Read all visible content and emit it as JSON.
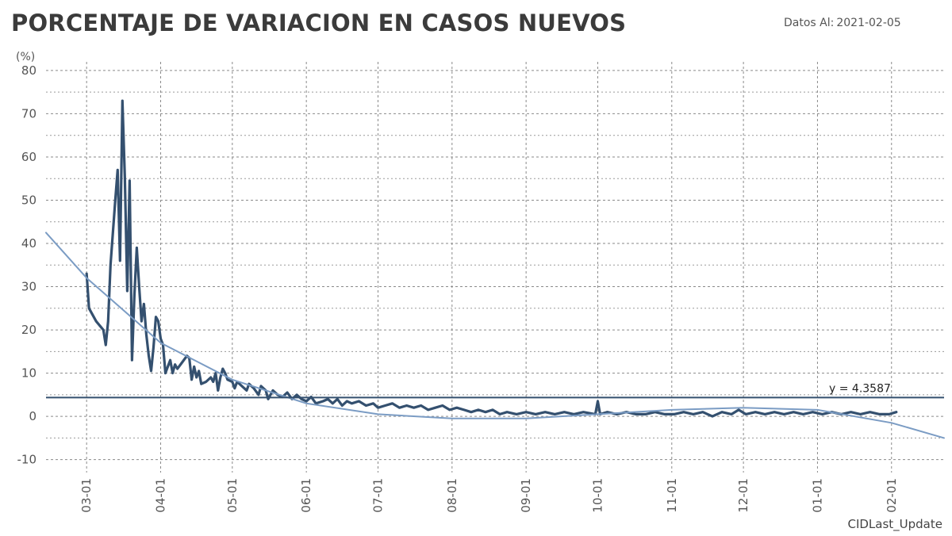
{
  "header": {
    "title": "PORCENTAJE DE VARIACION EN CASOS NUEVOS",
    "data_as_of_label": "Datos Al:",
    "data_as_of_date": "2021-02-05"
  },
  "footer": {
    "text": "CIDLast_Update"
  },
  "chart_data": {
    "type": "line",
    "title": "PORCENTAJE DE VARIACION EN CASOS NUEVOS",
    "ylabel": "(%)",
    "xlabel": "",
    "x_range": [
      "2020-02-13",
      "2021-02-23"
    ],
    "ylim": [
      -13,
      82
    ],
    "y_ticks": [
      -10,
      0,
      10,
      20,
      30,
      40,
      50,
      60,
      70,
      80
    ],
    "x_ticks": [
      {
        "date": "2020-03-01",
        "label": "03-01"
      },
      {
        "date": "2020-04-01",
        "label": "04-01"
      },
      {
        "date": "2020-05-01",
        "label": "05-01"
      },
      {
        "date": "2020-06-01",
        "label": "06-01"
      },
      {
        "date": "2020-07-01",
        "label": "07-01"
      },
      {
        "date": "2020-08-01",
        "label": "08-01"
      },
      {
        "date": "2020-09-01",
        "label": "09-01"
      },
      {
        "date": "2020-10-01",
        "label": "10-01"
      },
      {
        "date": "2020-11-01",
        "label": "11-01"
      },
      {
        "date": "2020-12-01",
        "label": "12-01"
      },
      {
        "date": "2021-01-01",
        "label": "01-01"
      },
      {
        "date": "2021-02-01",
        "label": "02-01"
      }
    ],
    "grid": true,
    "reference_line": {
      "value": 4.3587,
      "label": "y = 4.3587"
    },
    "colors": {
      "series": "#34506f",
      "trend": "#7b9cc4",
      "reference": "#34506f",
      "title": "#3b3b3b"
    },
    "series": [
      {
        "style": "thick",
        "points": [
          [
            "2020-03-01",
            33
          ],
          [
            "2020-03-02",
            25
          ],
          [
            "2020-03-05",
            22
          ],
          [
            "2020-03-08",
            20
          ],
          [
            "2020-03-09",
            16.5
          ],
          [
            "2020-03-10",
            22
          ],
          [
            "2020-03-11",
            35
          ],
          [
            "2020-03-13",
            50
          ],
          [
            "2020-03-14",
            57
          ],
          [
            "2020-03-15",
            36
          ],
          [
            "2020-03-16",
            73
          ],
          [
            "2020-03-17",
            55
          ],
          [
            "2020-03-18",
            29
          ],
          [
            "2020-03-19",
            54.5
          ],
          [
            "2020-03-20",
            13
          ],
          [
            "2020-03-21",
            28
          ],
          [
            "2020-03-22",
            39
          ],
          [
            "2020-03-23",
            30
          ],
          [
            "2020-03-24",
            22
          ],
          [
            "2020-03-25",
            26
          ],
          [
            "2020-03-26",
            19
          ],
          [
            "2020-03-27",
            14
          ],
          [
            "2020-03-28",
            10.5
          ],
          [
            "2020-03-29",
            16
          ],
          [
            "2020-03-30",
            23
          ],
          [
            "2020-03-31",
            22
          ],
          [
            "2020-04-01",
            18
          ],
          [
            "2020-04-02",
            16.5
          ],
          [
            "2020-04-03",
            10
          ],
          [
            "2020-04-04",
            11.5
          ],
          [
            "2020-04-05",
            13
          ],
          [
            "2020-04-06",
            10
          ],
          [
            "2020-04-07",
            12
          ],
          [
            "2020-04-08",
            11
          ],
          [
            "2020-04-10",
            12.5
          ],
          [
            "2020-04-12",
            14
          ],
          [
            "2020-04-13",
            13.5
          ],
          [
            "2020-04-14",
            8.5
          ],
          [
            "2020-04-15",
            11.5
          ],
          [
            "2020-04-16",
            9
          ],
          [
            "2020-04-17",
            10.5
          ],
          [
            "2020-04-18",
            7.5
          ],
          [
            "2020-04-20",
            8
          ],
          [
            "2020-04-22",
            9
          ],
          [
            "2020-04-23",
            8
          ],
          [
            "2020-04-24",
            10
          ],
          [
            "2020-04-25",
            6
          ],
          [
            "2020-04-26",
            9
          ],
          [
            "2020-04-27",
            11
          ],
          [
            "2020-04-28",
            10
          ],
          [
            "2020-04-29",
            8.5
          ],
          [
            "2020-05-01",
            8
          ],
          [
            "2020-05-02",
            6.5
          ],
          [
            "2020-05-03",
            8
          ],
          [
            "2020-05-05",
            7
          ],
          [
            "2020-05-07",
            6
          ],
          [
            "2020-05-08",
            7.5
          ],
          [
            "2020-05-10",
            6.5
          ],
          [
            "2020-05-12",
            5
          ],
          [
            "2020-05-13",
            7
          ],
          [
            "2020-05-15",
            6
          ],
          [
            "2020-05-16",
            4
          ],
          [
            "2020-05-18",
            6
          ],
          [
            "2020-05-20",
            5
          ],
          [
            "2020-05-22",
            4.5
          ],
          [
            "2020-05-24",
            5.5
          ],
          [
            "2020-05-26",
            4
          ],
          [
            "2020-05-28",
            5
          ],
          [
            "2020-05-30",
            4
          ],
          [
            "2020-06-01",
            3.5
          ],
          [
            "2020-06-03",
            4.5
          ],
          [
            "2020-06-05",
            3
          ],
          [
            "2020-06-08",
            3.5
          ],
          [
            "2020-06-10",
            4
          ],
          [
            "2020-06-12",
            3
          ],
          [
            "2020-06-14",
            4
          ],
          [
            "2020-06-16",
            2.5
          ],
          [
            "2020-06-18",
            3.5
          ],
          [
            "2020-06-20",
            3
          ],
          [
            "2020-06-23",
            3.5
          ],
          [
            "2020-06-26",
            2.5
          ],
          [
            "2020-06-29",
            3
          ],
          [
            "2020-07-01",
            2
          ],
          [
            "2020-07-04",
            2.5
          ],
          [
            "2020-07-07",
            3
          ],
          [
            "2020-07-10",
            2
          ],
          [
            "2020-07-13",
            2.5
          ],
          [
            "2020-07-16",
            2
          ],
          [
            "2020-07-19",
            2.5
          ],
          [
            "2020-07-22",
            1.5
          ],
          [
            "2020-07-25",
            2
          ],
          [
            "2020-07-28",
            2.5
          ],
          [
            "2020-07-31",
            1.5
          ],
          [
            "2020-08-03",
            2
          ],
          [
            "2020-08-06",
            1.5
          ],
          [
            "2020-08-09",
            1
          ],
          [
            "2020-08-12",
            1.5
          ],
          [
            "2020-08-15",
            1
          ],
          [
            "2020-08-18",
            1.5
          ],
          [
            "2020-08-21",
            0.5
          ],
          [
            "2020-08-24",
            1
          ],
          [
            "2020-08-28",
            0.5
          ],
          [
            "2020-09-01",
            1
          ],
          [
            "2020-09-05",
            0.5
          ],
          [
            "2020-09-09",
            1
          ],
          [
            "2020-09-13",
            0.5
          ],
          [
            "2020-09-17",
            1
          ],
          [
            "2020-09-21",
            0.5
          ],
          [
            "2020-09-25",
            1
          ],
          [
            "2020-09-30",
            0.5
          ],
          [
            "2020-10-01",
            3.5
          ],
          [
            "2020-10-02",
            0.5
          ],
          [
            "2020-10-05",
            1
          ],
          [
            "2020-10-09",
            0.5
          ],
          [
            "2020-10-13",
            1
          ],
          [
            "2020-10-17",
            0.5
          ],
          [
            "2020-10-21",
            0.5
          ],
          [
            "2020-10-25",
            1
          ],
          [
            "2020-10-29",
            0.5
          ],
          [
            "2020-11-02",
            0.5
          ],
          [
            "2020-11-06",
            1
          ],
          [
            "2020-11-10",
            0.5
          ],
          [
            "2020-11-14",
            1
          ],
          [
            "2020-11-18",
            0
          ],
          [
            "2020-11-22",
            1
          ],
          [
            "2020-11-26",
            0.5
          ],
          [
            "2020-11-29",
            1.5
          ],
          [
            "2020-12-02",
            0.5
          ],
          [
            "2020-12-06",
            1
          ],
          [
            "2020-12-10",
            0.5
          ],
          [
            "2020-12-14",
            1
          ],
          [
            "2020-12-18",
            0.5
          ],
          [
            "2020-12-22",
            1
          ],
          [
            "2020-12-26",
            0.5
          ],
          [
            "2020-12-30",
            1
          ],
          [
            "2021-01-03",
            0.5
          ],
          [
            "2021-01-07",
            1
          ],
          [
            "2021-01-11",
            0.5
          ],
          [
            "2021-01-15",
            1
          ],
          [
            "2021-01-19",
            0.5
          ],
          [
            "2021-01-23",
            1
          ],
          [
            "2021-01-27",
            0.5
          ],
          [
            "2021-01-31",
            0.5
          ],
          [
            "2021-02-03",
            1
          ]
        ]
      },
      {
        "style": "trend",
        "points": [
          [
            "2020-02-13",
            42.5
          ],
          [
            "2020-03-01",
            32
          ],
          [
            "2020-04-01",
            17
          ],
          [
            "2020-05-01",
            8.5
          ],
          [
            "2020-06-01",
            3
          ],
          [
            "2020-07-01",
            0.5
          ],
          [
            "2020-08-01",
            -0.5
          ],
          [
            "2020-09-01",
            -0.5
          ],
          [
            "2020-10-01",
            0.5
          ],
          [
            "2020-11-01",
            1.5
          ],
          [
            "2020-12-01",
            2
          ],
          [
            "2021-01-01",
            1.5
          ],
          [
            "2021-02-01",
            -1.5
          ],
          [
            "2021-02-23",
            -5
          ]
        ]
      }
    ]
  }
}
